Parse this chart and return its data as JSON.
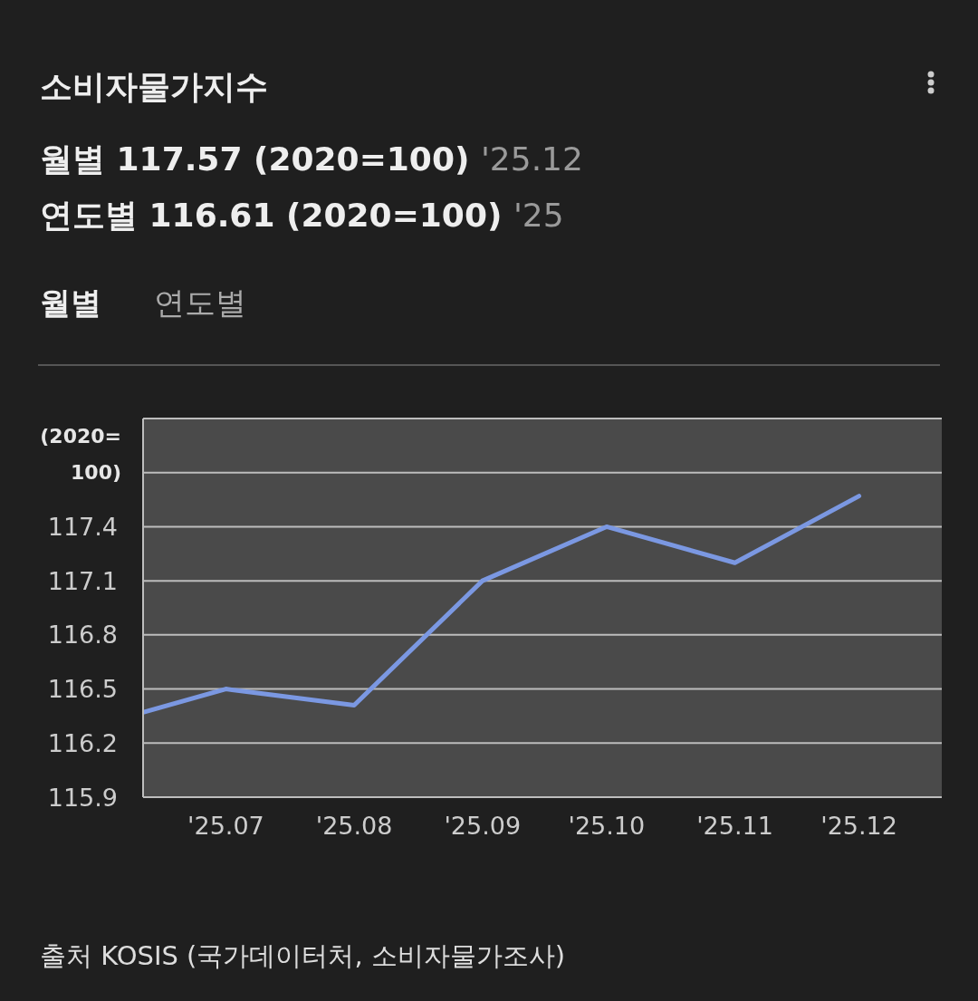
{
  "chart_data": {
    "type": "line",
    "title": "소비자물가지수",
    "subtitle": "월별 117.57 (2020=100) '25.12",
    "annotations": [
      "연도별 116.61 (2020=100) '25",
      "월별",
      "연도별",
      "출처 KOSIS (국가데이터처, 소비자물가조사)"
    ],
    "ylabel": "(2020=100)",
    "x": [
      "2025-06-11",
      "2025-07",
      "2025-08",
      "2025-09",
      "2025-10",
      "2025-11",
      "2025-12"
    ],
    "series": [
      {
        "color": "#7b98e2",
        "values": [
          116.37,
          116.5,
          116.41,
          117.1,
          117.4,
          117.2,
          117.57
        ]
      }
    ],
    "xlim": [
      "2025-06-11",
      "2025-12-21"
    ],
    "xticks": [
      {
        "value": "2025-07",
        "label": "'25.07"
      },
      {
        "value": "2025-08",
        "label": "'25.08"
      },
      {
        "value": "2025-09",
        "label": "'25.09"
      },
      {
        "value": "2025-10",
        "label": "'25.10"
      },
      {
        "value": "2025-11",
        "label": "'25.11"
      },
      {
        "value": "2025-12",
        "label": "'25.12"
      }
    ],
    "ylim": [
      115.9,
      118.0
    ],
    "yticks": [
      115.9,
      116.2,
      116.5,
      116.8,
      117.1,
      117.4,
      {
        "value": 117.7,
        "label": null
      },
      {
        "value": 118.0,
        "label": null
      }
    ],
    "grid": "y",
    "marker": "none",
    "line_style": "solid"
  }
}
